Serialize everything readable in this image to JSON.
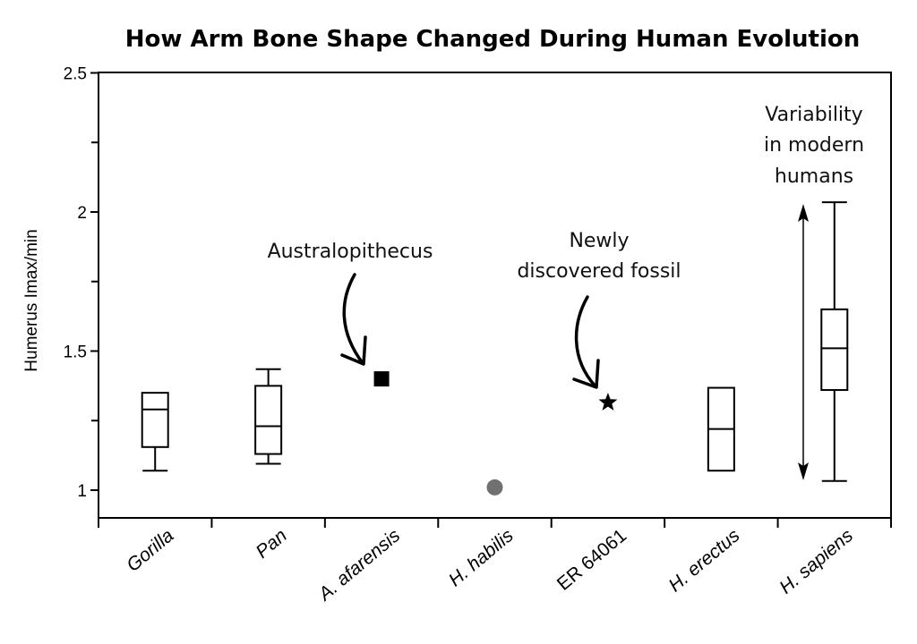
{
  "chart_data": {
    "type": "box",
    "title": "How Arm Bone Shape Changed During Human Evolution",
    "xlabel": "",
    "ylabel": "Humerus Imax/min",
    "ylim": [
      0.9,
      2.5
    ],
    "yticks": [
      {
        "value": 1,
        "label": "1"
      },
      {
        "value": 1.5,
        "label": "1.5"
      },
      {
        "value": 2,
        "label": "2"
      },
      {
        "value": 2.5,
        "label": "2.5"
      }
    ],
    "minor_yticks": [
      1.25,
      1.75,
      2.25
    ],
    "grid": false,
    "categories": [
      "Gorilla",
      "Pan",
      "A. afarensis",
      "H. habilis",
      "ER 64061",
      "H. erectus",
      "H. sapiens"
    ],
    "category_italic": [
      true,
      true,
      true,
      true,
      false,
      true,
      true
    ],
    "series": [
      {
        "name": "Gorilla",
        "kind": "box",
        "whisker_low": 1.07,
        "q1": 1.155,
        "median": 1.29,
        "q3": 1.35,
        "whisker_high": null
      },
      {
        "name": "Pan",
        "kind": "box",
        "whisker_low": 1.095,
        "q1": 1.13,
        "median": 1.23,
        "q3": 1.375,
        "whisker_high": 1.435
      },
      {
        "name": "A. afarensis",
        "kind": "point",
        "marker": "square",
        "value": 1.4,
        "color": "#000000"
      },
      {
        "name": "H. habilis",
        "kind": "point",
        "marker": "circle",
        "value": 1.01,
        "color": "#707070"
      },
      {
        "name": "ER 64061",
        "kind": "point",
        "marker": "star",
        "value": 1.315,
        "color": "#000000"
      },
      {
        "name": "H. erectus",
        "kind": "box",
        "whisker_low": null,
        "q1": 1.07,
        "median": 1.22,
        "q3": 1.368,
        "whisker_high": null
      },
      {
        "name": "H. sapiens",
        "kind": "box",
        "whisker_low": 1.033,
        "q1": 1.36,
        "median": 1.51,
        "q3": 1.65,
        "whisker_high": 2.035
      }
    ],
    "annotations": [
      {
        "text": [
          "Australopithecus"
        ],
        "points_to": "A. afarensis"
      },
      {
        "text": [
          "Newly",
          "discovered fossil"
        ],
        "points_to": "ER 64061"
      },
      {
        "text": [
          "Variability",
          "in modern",
          "humans"
        ],
        "points_to": "H. sapiens",
        "double_arrow_range": [
          1.04,
          2.03
        ]
      }
    ]
  }
}
